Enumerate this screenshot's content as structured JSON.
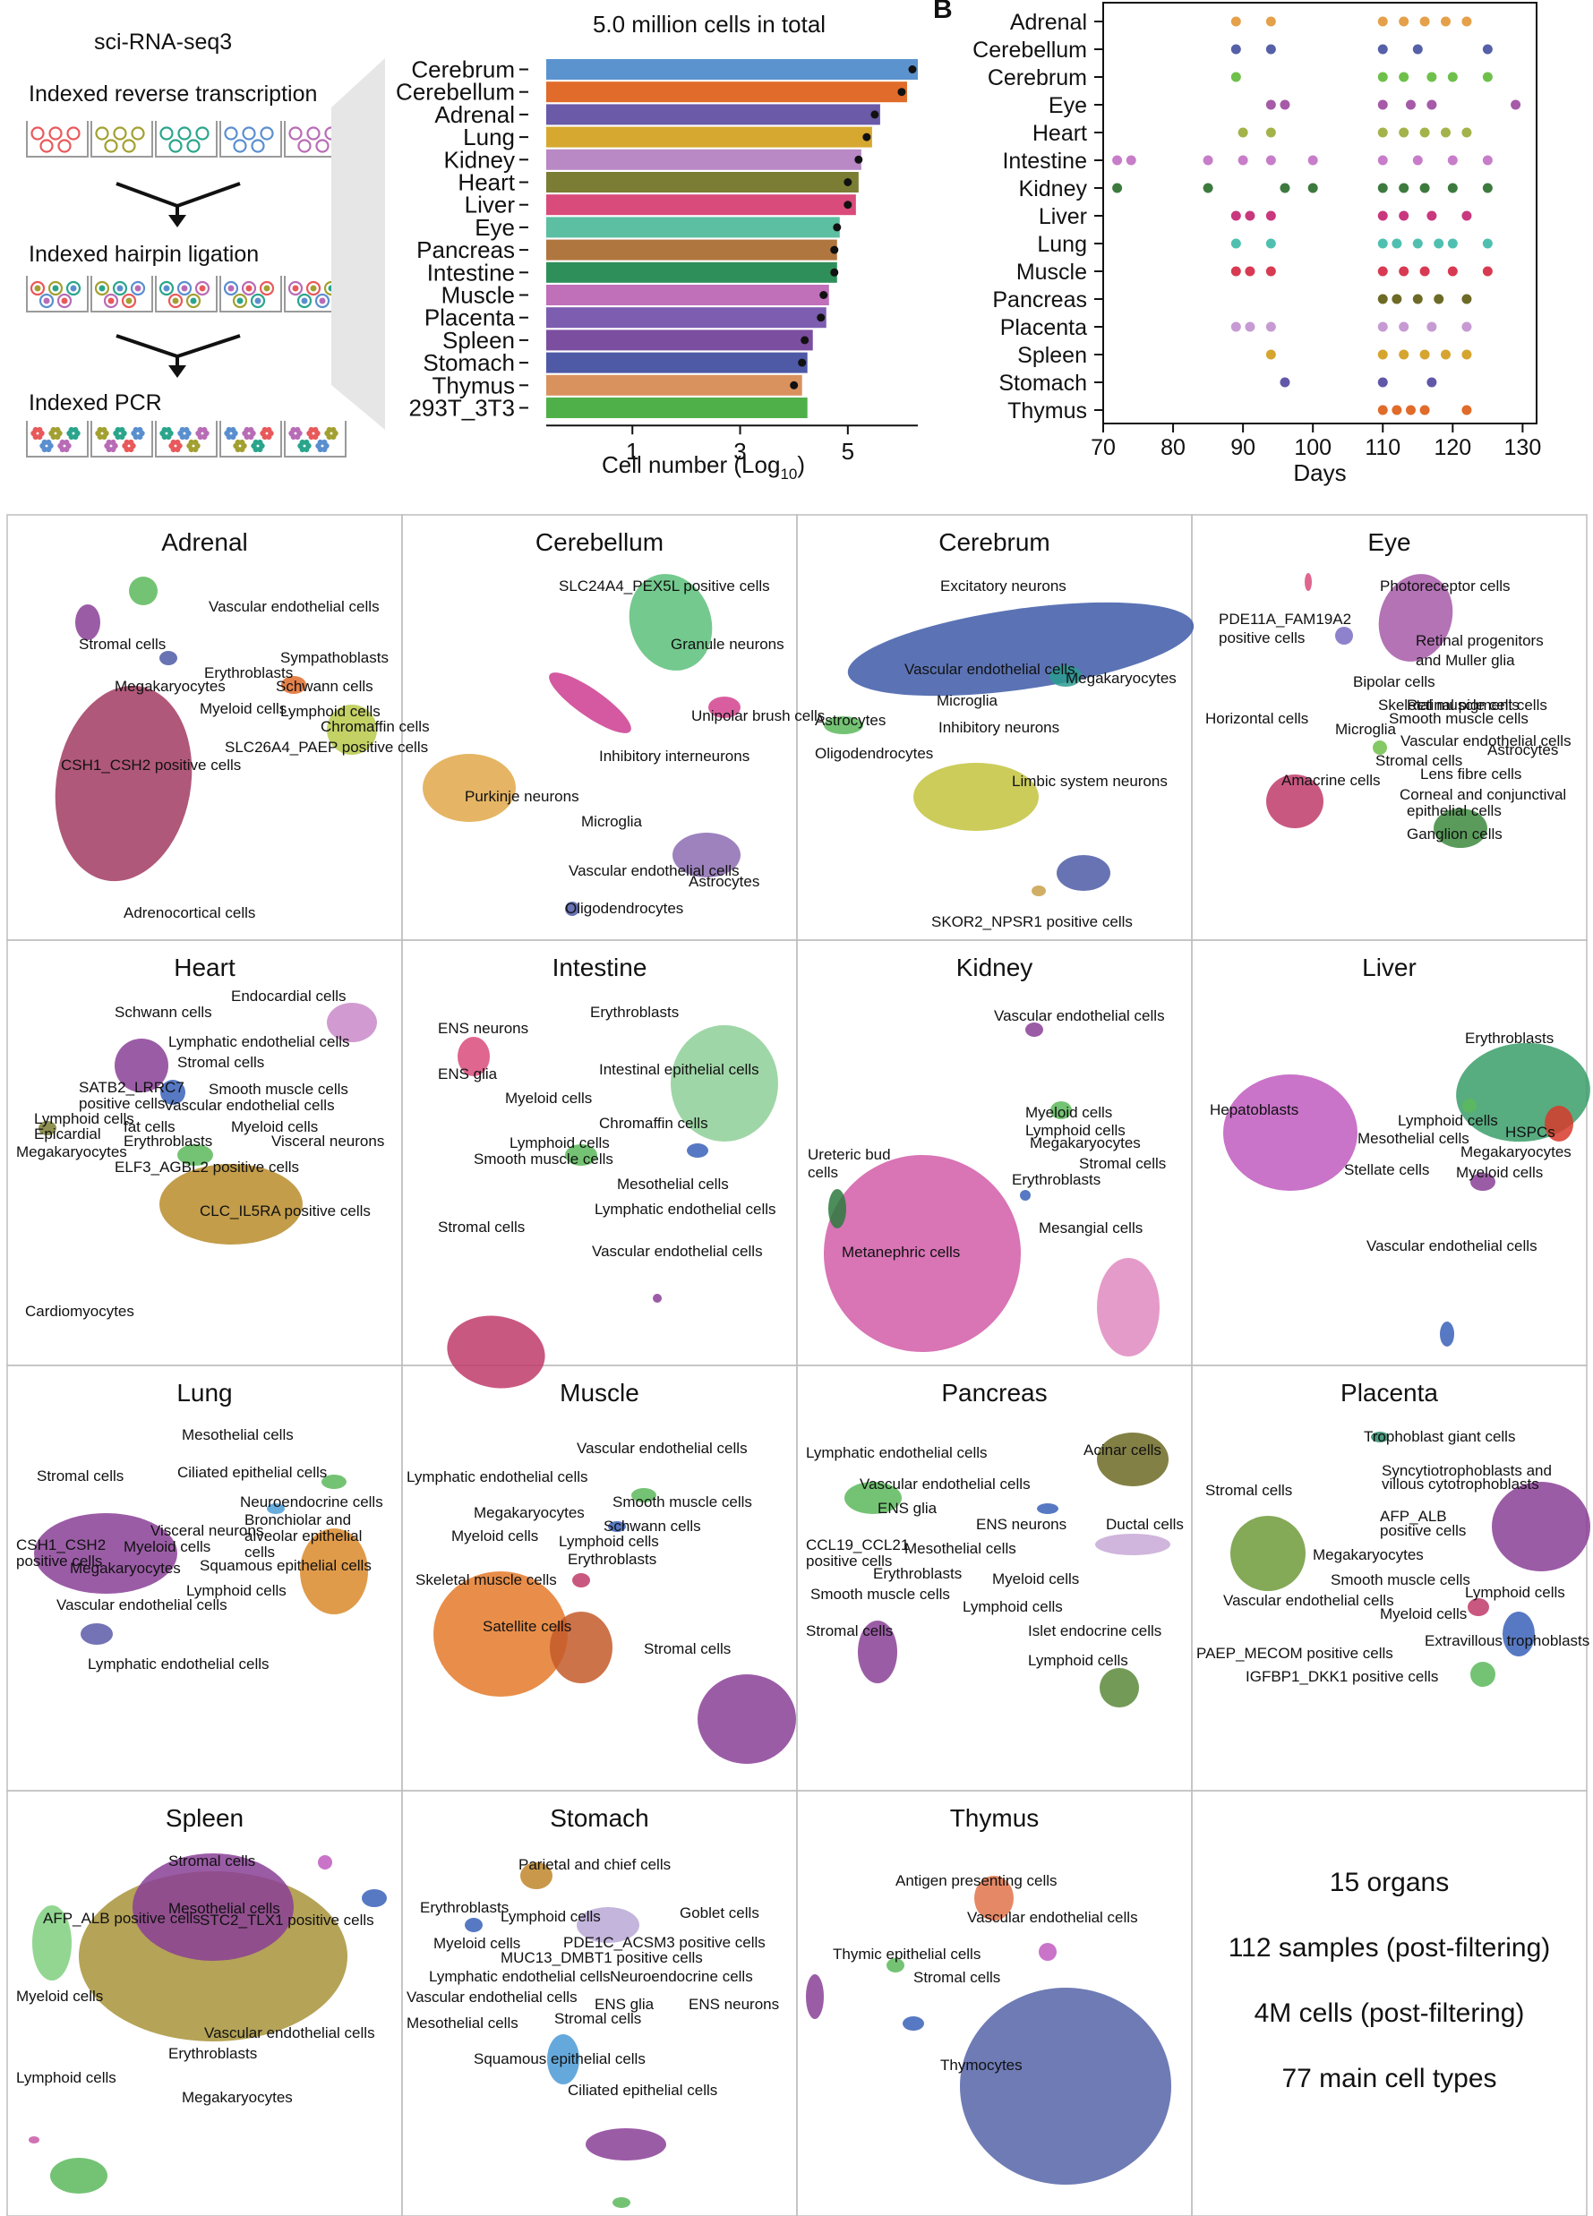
{
  "panel_a": {
    "method_title": "sci-RNA-seq3",
    "steps": [
      "Indexed reverse transcription",
      "Indexed hairpin ligation",
      "Indexed PCR"
    ]
  },
  "chart_data": [
    {
      "type": "bar",
      "orientation": "horizontal",
      "title": "5.0 million cells in total",
      "xlabel": "Cell number (Log",
      "xlabel_sub": "10",
      "xlabel_end": ")",
      "xticks": [
        1,
        3,
        5
      ],
      "xlim": [
        -0.6,
        6.3
      ],
      "categories": [
        "Cerebrum",
        "Cerebellum",
        "Adrenal",
        "Lung",
        "Kidney",
        "Heart",
        "Liver",
        "Eye",
        "Pancreas",
        "Intestine",
        "Muscle",
        "Placenta",
        "Spleen",
        "Stomach",
        "Thymus",
        "293T_3T3"
      ],
      "values": [
        6.3,
        6.1,
        5.6,
        5.45,
        5.25,
        5.2,
        5.15,
        4.85,
        4.8,
        4.8,
        4.65,
        4.6,
        4.35,
        4.25,
        4.15,
        4.25
      ],
      "points": [
        6.2,
        6.0,
        5.5,
        5.35,
        5.2,
        5.0,
        5.0,
        4.8,
        4.75,
        4.75,
        4.55,
        4.5,
        4.2,
        4.15,
        4.0,
        null
      ],
      "colors": [
        "#5b93cf",
        "#e06b2a",
        "#6a5aa8",
        "#d6a830",
        "#b889c4",
        "#7a7d33",
        "#d94b7a",
        "#5cbfa2",
        "#b0763f",
        "#2f8f5b",
        "#c06fb9",
        "#7c5db0",
        "#7b4ea0",
        "#4e5aa6",
        "#d9925e",
        "#4fb04a"
      ]
    },
    {
      "type": "scatter",
      "panel_label": "B",
      "xlabel": "Days",
      "xticks": [
        70,
        80,
        90,
        100,
        110,
        120,
        130
      ],
      "xlim": [
        70,
        132
      ],
      "categories": [
        "Adrenal",
        "Cerebellum",
        "Cerebrum",
        "Eye",
        "Heart",
        "Intestine",
        "Kidney",
        "Liver",
        "Lung",
        "Muscle",
        "Pancreas",
        "Placenta",
        "Spleen",
        "Stomach",
        "Thymus"
      ],
      "series": [
        {
          "category": "Adrenal",
          "color": "#e5a04a",
          "x": [
            89,
            94,
            110,
            113,
            116,
            119,
            122
          ]
        },
        {
          "category": "Cerebellum",
          "color": "#5560a8",
          "x": [
            89,
            94,
            110,
            115,
            125
          ]
        },
        {
          "category": "Cerebrum",
          "color": "#6ec04a",
          "x": [
            89,
            110,
            113,
            117,
            120,
            125
          ]
        },
        {
          "category": "Eye",
          "color": "#a65aa8",
          "x": [
            94,
            96,
            110,
            114,
            117,
            129
          ]
        },
        {
          "category": "Heart",
          "color": "#a3b34a",
          "x": [
            90,
            94,
            110,
            113,
            116,
            119,
            122
          ]
        },
        {
          "category": "Intestine",
          "color": "#c77dc9",
          "x": [
            72,
            74,
            85,
            90,
            94,
            100,
            110,
            115,
            120,
            125
          ]
        },
        {
          "category": "Kidney",
          "color": "#3d7a3e",
          "x": [
            72,
            85,
            96,
            100,
            110,
            113,
            116,
            120,
            125
          ]
        },
        {
          "category": "Liver",
          "color": "#c9387e",
          "x": [
            89,
            91,
            94,
            110,
            113,
            117,
            122
          ]
        },
        {
          "category": "Lung",
          "color": "#4fc0b0",
          "x": [
            89,
            94,
            110,
            112,
            115,
            118,
            120,
            125
          ]
        },
        {
          "category": "Muscle",
          "color": "#d73a52",
          "x": [
            89,
            91,
            94,
            110,
            113,
            116,
            120,
            125
          ]
        },
        {
          "category": "Pancreas",
          "color": "#6d6a25",
          "x": [
            110,
            112,
            115,
            118,
            122
          ]
        },
        {
          "category": "Placenta",
          "color": "#c79ad3",
          "x": [
            89,
            91,
            94,
            110,
            113,
            117,
            122
          ]
        },
        {
          "category": "Spleen",
          "color": "#d5a530",
          "x": [
            94,
            110,
            113,
            116,
            119,
            122
          ]
        },
        {
          "category": "Stomach",
          "color": "#6158a8",
          "x": [
            96,
            110,
            117
          ]
        },
        {
          "category": "Thymus",
          "color": "#e06b2a",
          "x": [
            110,
            112,
            114,
            116,
            122
          ]
        }
      ]
    }
  ],
  "umap_panels": [
    {
      "title": "Adrenal",
      "labels": [
        "Vascular endothelial cells",
        "Stromal cells",
        "Erythroblasts",
        "Sympathoblasts",
        "Megakaryocytes",
        "Schwann cells",
        "Myeloid cells",
        "Lymphoid cells",
        "Chromaffin cells",
        "SLC26A4_PAEP positive cells",
        "CSH1_CSH2 positive cells",
        "Adrenocortical cells"
      ]
    },
    {
      "title": "Cerebellum",
      "labels": [
        "SLC24A4_PEX5L positive cells",
        "Granule neurons",
        "Unipolar brush cells",
        "Inhibitory interneurons",
        "Purkinje neurons",
        "Microglia",
        "Vascular endothelial cells",
        "Astrocytes",
        "Oligodendrocytes"
      ]
    },
    {
      "title": "Cerebrum",
      "labels": [
        "Excitatory neurons",
        "Vascular endothelial cells",
        "Megakaryocytes",
        "Microglia",
        "Astrocytes",
        "Inhibitory neurons",
        "Oligodendrocytes",
        "Limbic system neurons",
        "SKOR2_NPSR1 positive cells"
      ]
    },
    {
      "title": "Eye",
      "labels": [
        "Photoreceptor cells",
        "PDE11A_FAM19A2",
        "positive cells",
        "Retinal progenitors",
        "and Muller glia",
        "Bipolar cells",
        "Skeletal muscle cells",
        "Retinal pigment cells",
        "Horizontal cells",
        "Smooth muscle cells",
        "Microglia",
        "Vascular endothelial cells",
        "Astrocytes",
        "Stromal cells",
        "Amacrine cells",
        "Lens fibre cells",
        "Corneal and conjunctival",
        "epithelial cells",
        "Ganglion cells"
      ]
    },
    {
      "title": "Heart",
      "labels": [
        "Endocardial cells",
        "Schwann cells",
        "Lymphatic endothelial cells",
        "Stromal cells",
        "SATB2_LRRC7",
        "positive cells",
        "Smooth muscle cells",
        "Vascular endothelial cells",
        "Lymphoid cells",
        "Epicardial",
        "fat cells",
        "Erythroblasts",
        "Myeloid cells",
        "Visceral neurons",
        "Megakaryocytes",
        "ELF3_AGBL2 positive cells",
        "CLC_IL5RA positive cells",
        "Cardiomyocytes"
      ]
    },
    {
      "title": "Intestine",
      "labels": [
        "Erythroblasts",
        "ENS neurons",
        "ENS glia",
        "Intestinal epithelial cells",
        "Myeloid cells",
        "Chromaffin cells",
        "Lymphoid cells",
        "Smooth muscle cells",
        "Mesothelial cells",
        "Lymphatic endothelial cells",
        "Stromal cells",
        "Vascular endothelial cells"
      ]
    },
    {
      "title": "Kidney",
      "labels": [
        "Vascular endothelial cells",
        "Myeloid cells",
        "Lymphoid cells",
        "Megakaryocytes",
        "Ureteric bud",
        "cells",
        "Stromal cells",
        "Erythroblasts",
        "Mesangial cells",
        "Metanephric cells"
      ]
    },
    {
      "title": "Liver",
      "labels": [
        "Erythroblasts",
        "Hepatoblasts",
        "Lymphoid cells",
        "HSPCs",
        "Mesothelial cells",
        "Megakaryocytes",
        "Stellate cells",
        "Myeloid cells",
        "Vascular endothelial cells"
      ]
    },
    {
      "title": "Lung",
      "labels": [
        "Mesothelial cells",
        "Ciliated epithelial cells",
        "Stromal cells",
        "Neuroendocrine cells",
        "Bronchiolar and",
        "alveolar epithelial",
        "cells",
        "Visceral neurons",
        "CSH1_CSH2",
        "positive cells",
        "Myeloid cells",
        "Megakaryocytes",
        "Squamous epithelial cells",
        "Lymphoid cells",
        "Vascular endothelial cells",
        "Lymphatic endothelial cells"
      ]
    },
    {
      "title": "Muscle",
      "labels": [
        "Vascular endothelial cells",
        "Lymphatic endothelial cells",
        "Smooth muscle cells",
        "Megakaryocytes",
        "Schwann cells",
        "Myeloid cells",
        "Lymphoid cells",
        "Erythroblasts",
        "Skeletal muscle cells",
        "Satellite cells",
        "Stromal cells"
      ]
    },
    {
      "title": "Pancreas",
      "labels": [
        "Lymphatic endothelial cells",
        "Acinar cells",
        "Vascular endothelial cells",
        "ENS glia",
        "ENS neurons",
        "Ductal cells",
        "CCL19_CCL21",
        "positive cells",
        "Mesothelial cells",
        "Erythroblasts",
        "Myeloid cells",
        "Smooth muscle cells",
        "Lymphoid cells",
        "Stromal cells",
        "Islet endocrine cells",
        "Lymphoid cells"
      ]
    },
    {
      "title": "Placenta",
      "labels": [
        "Trophoblast giant cells",
        "Syncytiotrophoblasts and",
        "villous cytotrophoblasts",
        "Stromal cells",
        "AFP_ALB",
        "positive cells",
        "Megakaryocytes",
        "Smooth muscle cells",
        "Lymphoid cells",
        "Vascular endothelial cells",
        "Myeloid cells",
        "Extravillous trophoblasts",
        "PAEP_MECOM positive cells",
        "IGFBP1_DKK1 positive cells"
      ]
    },
    {
      "title": "Spleen",
      "labels": [
        "Stromal cells",
        "Mesothelial cells",
        "AFP_ALB positive cells",
        "STC2_TLX1 positive cells",
        "Myeloid cells",
        "Vascular endothelial cells",
        "Erythroblasts",
        "Lymphoid cells",
        "Megakaryocytes"
      ]
    },
    {
      "title": "Stomach",
      "labels": [
        "Parietal and chief cells",
        "Erythroblasts",
        "Lymphoid cells",
        "Goblet cells",
        "Myeloid cells",
        "PDE1C_ACSM3 positive cells",
        "MUC13_DMBT1 positive cells",
        "Lymphatic endothelial cells",
        "Neuroendocrine cells",
        "Vascular endothelial cells",
        "ENS glia",
        "ENS neurons",
        "Mesothelial cells",
        "Stromal cells",
        "Squamous epithelial cells",
        "Ciliated epithelial cells"
      ]
    },
    {
      "title": "Thymus",
      "labels": [
        "Antigen presenting cells",
        "Vascular endothelial cells",
        "Thymic epithelial cells",
        "Stromal cells",
        "Thymocytes"
      ]
    }
  ],
  "summary": [
    "15 organs",
    "112 samples (post-filtering)",
    "4M cells (post-filtering)",
    "77 main cell types"
  ]
}
